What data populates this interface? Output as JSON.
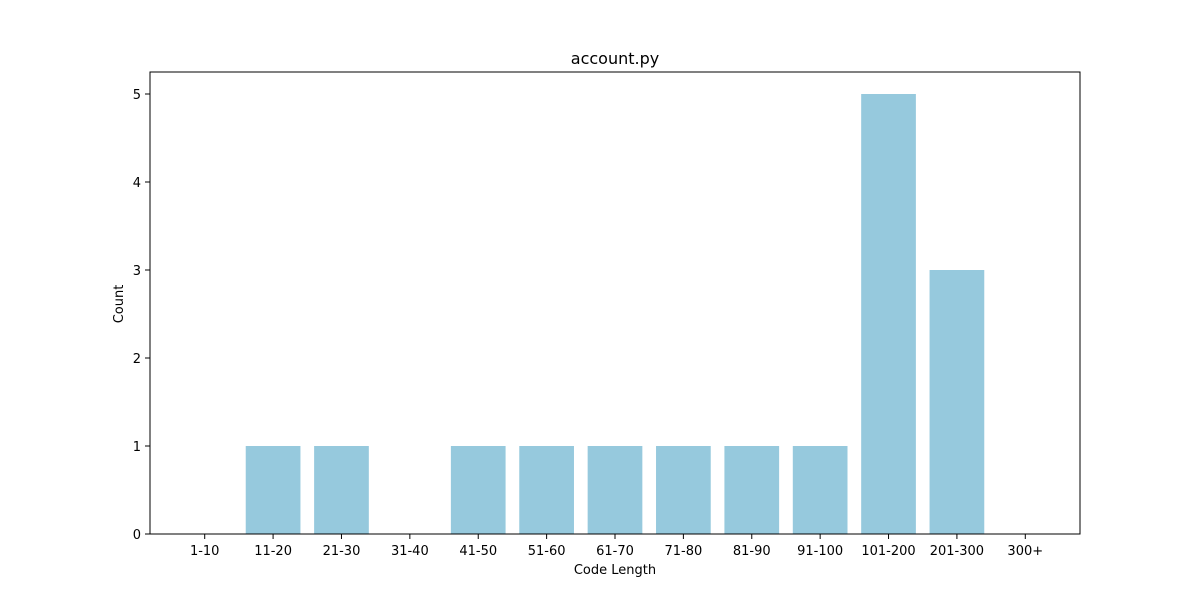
{
  "chart_data": {
    "type": "bar",
    "title": "account.py",
    "xlabel": "Code Length",
    "ylabel": "Count",
    "categories": [
      "1-10",
      "11-20",
      "21-30",
      "31-40",
      "41-50",
      "51-60",
      "61-70",
      "71-80",
      "81-90",
      "91-100",
      "101-200",
      "201-300",
      "300+"
    ],
    "values": [
      0,
      1,
      1,
      0,
      1,
      1,
      1,
      1,
      1,
      1,
      5,
      3,
      0
    ],
    "ylim": [
      0,
      5.25
    ],
    "yticks": [
      "0",
      "1",
      "2",
      "3",
      "4",
      "5"
    ],
    "bar_color": "#96c9dd",
    "grid": false,
    "legend": "none"
  }
}
